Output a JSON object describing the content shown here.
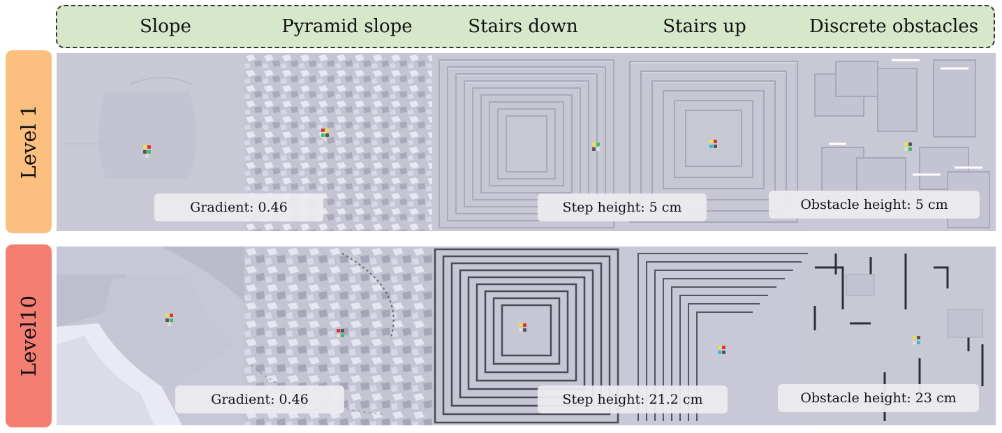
{
  "header": {
    "columns": [
      "Slope",
      "Pyramid slope",
      "Stairs down",
      "Stairs up",
      "Discrete obstacles"
    ]
  },
  "colors": {
    "header_bg": "#d6e8c9",
    "level_1": "#fbbf7f",
    "level_10": "#f57e73",
    "terrain": "#c8c8d6"
  },
  "rows": [
    {
      "label": "Level 1",
      "captions": {
        "slope": "Gradient: 0.46",
        "stairs": "Step height: 5 cm",
        "obstacles": "Obstacle height: 5 cm"
      }
    },
    {
      "label": "Level10",
      "captions": {
        "slope": "Gradient: 0.46",
        "stairs": "Step height: 21.2 cm",
        "obstacles": "Obstacle height: 23 cm"
      }
    }
  ]
}
